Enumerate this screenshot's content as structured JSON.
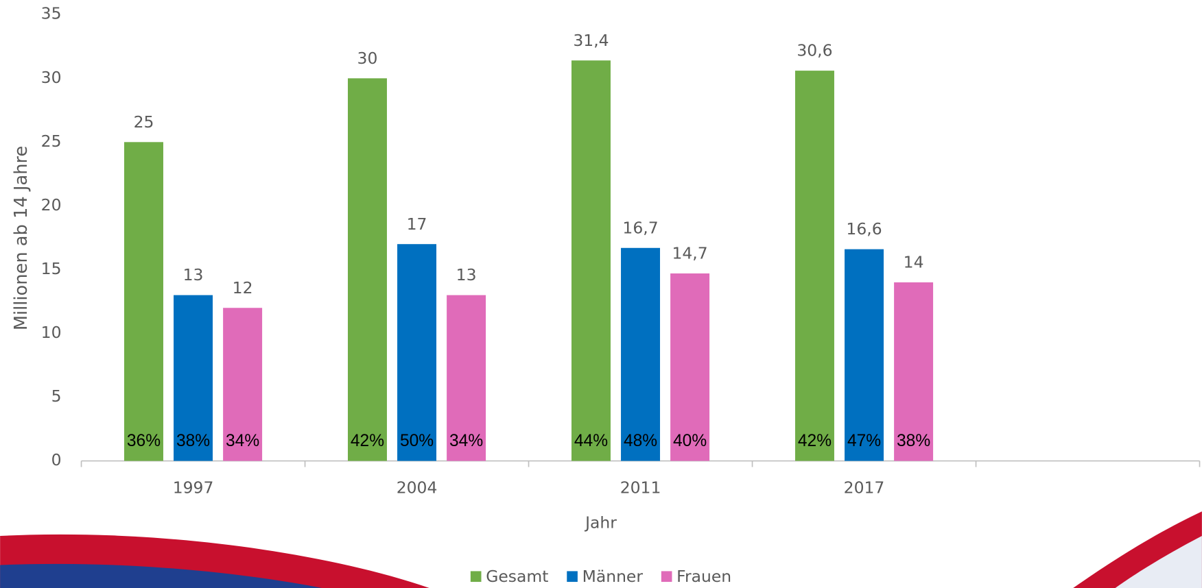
{
  "chart_data": {
    "type": "bar",
    "x_label": "Jahr",
    "y_label": "Millionen ab 14 Jahre",
    "categories": [
      "1997",
      "2004",
      "2011",
      "2017",
      null
    ],
    "series": [
      {
        "name": "Gesamt",
        "color": "#70ad47",
        "values": [
          25,
          30,
          31.4,
          30.6,
          null
        ],
        "value_labels": [
          "25",
          "30",
          "31,4",
          "30,6",
          null
        ],
        "share_labels": [
          "36%",
          "42%",
          "44%",
          "42%",
          null
        ]
      },
      {
        "name": "Männer",
        "color": "#0070c0",
        "values": [
          13,
          17,
          16.7,
          16.6,
          null
        ],
        "value_labels": [
          "13",
          "17",
          "16,7",
          "16,6",
          null
        ],
        "share_labels": [
          "38%",
          "50%",
          "48%",
          "47%",
          null
        ]
      },
      {
        "name": "Frauen",
        "color": "#e06bb9",
        "values": [
          12,
          13,
          14.7,
          14,
          null
        ],
        "value_labels": [
          "12",
          "13",
          "14,7",
          "14",
          null
        ],
        "share_labels": [
          "34%",
          "34%",
          "40%",
          "38%",
          null
        ]
      }
    ],
    "ylim": [
      0,
      35
    ],
    "yticks": [
      0,
      5,
      10,
      15,
      20,
      25,
      30,
      35
    ],
    "grid": false,
    "legend": "bottom"
  }
}
